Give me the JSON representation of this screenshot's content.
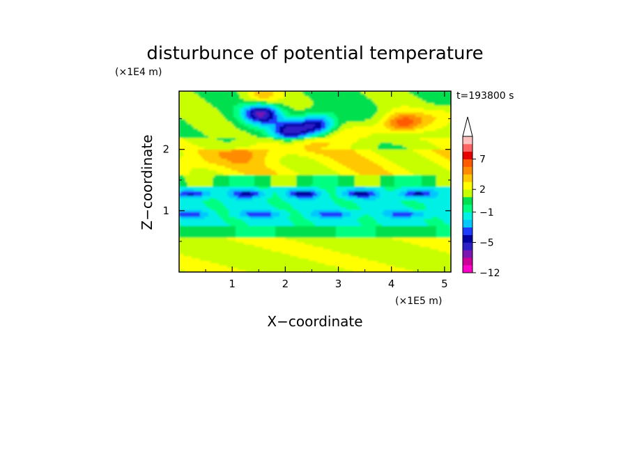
{
  "chart_data": {
    "type": "heatmap",
    "title": "disturbunce of potential temperature",
    "time_label": "t=193800 s",
    "xlabel": "X−coordinate",
    "ylabel": "Z−coordinate",
    "x_scale_label": "(×1E5 m)",
    "y_scale_label": "(×1E4 m)",
    "xlim": [
      0.0,
      5.12
    ],
    "ylim": [
      0.0,
      2.95
    ],
    "x_ticks": [
      1,
      2,
      3,
      4,
      5
    ],
    "x_tick_labels": [
      "1",
      "2",
      "3",
      "4",
      "5"
    ],
    "y_ticks": [
      1,
      2
    ],
    "y_tick_labels": [
      "1",
      "2"
    ],
    "colorbar": {
      "levels": [
        -12,
        -10,
        -8,
        -6,
        -5,
        -4,
        -3,
        -2,
        -1,
        0,
        1,
        2,
        3,
        4,
        5,
        7,
        9,
        11
      ],
      "colors": [
        "#ff00c8",
        "#cc0099",
        "#7b16b0",
        "#2d1ec8",
        "#0000a0",
        "#1e3cff",
        "#00c8ff",
        "#00f0e6",
        "#00ff80",
        "#00e050",
        "#c8ff00",
        "#ffff00",
        "#ffc800",
        "#ff8c00",
        "#ff5a00",
        "#e60000",
        "#ff6464",
        "#ffc0c0"
      ],
      "labeled_ticks": [
        {
          "value": 7,
          "label": "7"
        },
        {
          "value": 2,
          "label": "2"
        },
        {
          "value": -1,
          "label": "−1"
        },
        {
          "value": -5,
          "label": "−5"
        },
        {
          "value": -12,
          "label": "−12"
        }
      ]
    },
    "bands": [
      {
        "z_range": [
          2.0,
          2.95
        ],
        "dominant_values": [
          1,
          2,
          3
        ],
        "note": "upper layer with warm anomaly near x 3.5-5 and cold core near x 1.5-2.8"
      },
      {
        "z_range": [
          1.6,
          2.0
        ],
        "dominant_values": [
          2,
          3,
          4
        ]
      },
      {
        "z_range": [
          0.75,
          1.4
        ],
        "dominant_values": [
          -1,
          -2
        ],
        "note": "cold band with embedded minima ~ -5"
      },
      {
        "z_range": [
          0.0,
          0.75
        ],
        "dominant_values": [
          0,
          1,
          2
        ]
      }
    ],
    "anomalies": [
      {
        "x": 1.55,
        "z": 2.6,
        "value": -6,
        "label_kind": "cold core"
      },
      {
        "x": 2.1,
        "z": 2.3,
        "value": -5,
        "label_kind": "cold core"
      },
      {
        "x": 2.6,
        "z": 2.4,
        "value": -5,
        "label_kind": "cold core"
      },
      {
        "x": 1.55,
        "z": 2.85,
        "value": 4,
        "label_kind": "warm"
      },
      {
        "x": 4.2,
        "z": 2.45,
        "value": 4,
        "label_kind": "warm"
      }
    ]
  }
}
